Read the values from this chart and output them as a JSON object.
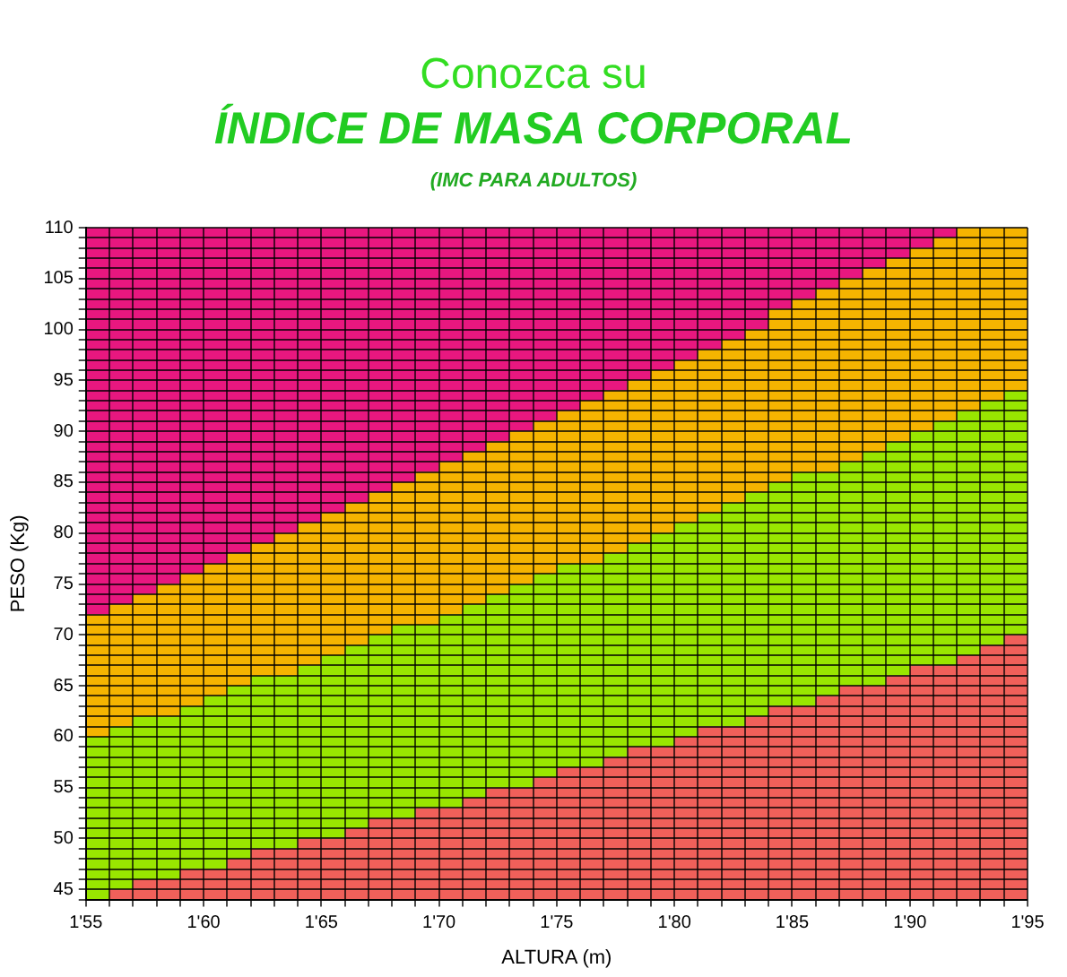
{
  "chart_data": {
    "type": "area",
    "title": "Conozca su",
    "subtitle": "ÍNDICE DE MASA CORPORAL",
    "annotations": [
      "(IMC PARA ADULTOS)"
    ],
    "xlabel": "ALTURA (m)",
    "ylabel": "PESO (Kg)",
    "categories": [
      "1'55",
      null,
      null,
      null,
      null,
      "1'60",
      null,
      null,
      null,
      null,
      "1'65",
      null,
      null,
      null,
      null,
      "1'70",
      null,
      null,
      null,
      null,
      "1'75",
      null,
      null,
      null,
      null,
      "1'80",
      null,
      null,
      null,
      null,
      "1'85",
      null,
      null,
      null,
      null,
      "1'90",
      null,
      null,
      null,
      null,
      "1'95"
    ],
    "series": [
      {
        "color": "#f0605a",
        "values": [
          44,
          45,
          46,
          46,
          47,
          47,
          48,
          49,
          49,
          50,
          50,
          51,
          52,
          52,
          53,
          53,
          54,
          55,
          55,
          56,
          57,
          57,
          58,
          59,
          59,
          60,
          61,
          61,
          62,
          63,
          63,
          64,
          65,
          65,
          66,
          67,
          67,
          68,
          69,
          70,
          70
        ]
      },
      {
        "color": "#99e600",
        "values": [
          60,
          61,
          62,
          62,
          63,
          64,
          65,
          66,
          66,
          67,
          68,
          69,
          70,
          71,
          71,
          72,
          73,
          74,
          75,
          76,
          77,
          77,
          78,
          79,
          80,
          81,
          82,
          83,
          84,
          85,
          86,
          86,
          87,
          88,
          89,
          90,
          91,
          92,
          93,
          94,
          95
        ]
      },
      {
        "color": "#f5b400",
        "values": [
          72,
          73,
          74,
          75,
          76,
          77,
          78,
          79,
          80,
          81,
          82,
          83,
          84,
          85,
          86,
          87,
          88,
          89,
          90,
          91,
          92,
          93,
          94,
          95,
          96,
          97,
          98,
          99,
          100,
          102,
          103,
          104,
          105,
          106,
          107,
          108,
          109,
          110,
          110,
          110,
          110
        ]
      },
      {
        "color": "#e8177f",
        "values": [
          110,
          110,
          110,
          110,
          110,
          110,
          110,
          110,
          110,
          110,
          110,
          110,
          110,
          110,
          110,
          110,
          110,
          110,
          110,
          110,
          110,
          110,
          110,
          110,
          110,
          110,
          110,
          110,
          110,
          110,
          110,
          110,
          110,
          110,
          110,
          110,
          110,
          110,
          110,
          110,
          110
        ]
      }
    ],
    "ylim": [
      44,
      110
    ],
    "yticks": [
      {
        "value": 44,
        "label": null
      },
      45,
      {
        "value": 46,
        "label": null
      },
      {
        "value": 47,
        "label": null
      },
      {
        "value": 48,
        "label": null
      },
      {
        "value": 49,
        "label": null
      },
      50,
      {
        "value": 51,
        "label": null
      },
      {
        "value": 52,
        "label": null
      },
      {
        "value": 53,
        "label": null
      },
      {
        "value": 54,
        "label": null
      },
      55,
      {
        "value": 56,
        "label": null
      },
      {
        "value": 57,
        "label": null
      },
      {
        "value": 58,
        "label": null
      },
      {
        "value": 59,
        "label": null
      },
      60,
      {
        "value": 61,
        "label": null
      },
      {
        "value": 62,
        "label": null
      },
      {
        "value": 63,
        "label": null
      },
      {
        "value": 64,
        "label": null
      },
      65,
      {
        "value": 66,
        "label": null
      },
      {
        "value": 67,
        "label": null
      },
      {
        "value": 68,
        "label": null
      },
      {
        "value": 69,
        "label": null
      },
      70,
      {
        "value": 71,
        "label": null
      },
      {
        "value": 72,
        "label": null
      },
      {
        "value": 73,
        "label": null
      },
      {
        "value": 74,
        "label": null
      },
      75,
      {
        "value": 76,
        "label": null
      },
      {
        "value": 77,
        "label": null
      },
      {
        "value": 78,
        "label": null
      },
      {
        "value": 79,
        "label": null
      },
      80,
      {
        "value": 81,
        "label": null
      },
      {
        "value": 82,
        "label": null
      },
      {
        "value": 83,
        "label": null
      },
      {
        "value": 84,
        "label": null
      },
      85,
      {
        "value": 86,
        "label": null
      },
      {
        "value": 87,
        "label": null
      },
      {
        "value": 88,
        "label": null
      },
      {
        "value": 89,
        "label": null
      },
      90,
      {
        "value": 91,
        "label": null
      },
      {
        "value": 92,
        "label": null
      },
      {
        "value": 93,
        "label": null
      },
      {
        "value": 94,
        "label": null
      },
      95,
      {
        "value": 96,
        "label": null
      },
      {
        "value": 97,
        "label": null
      },
      {
        "value": 98,
        "label": null
      },
      {
        "value": 99,
        "label": null
      },
      100,
      {
        "value": 101,
        "label": null
      },
      {
        "value": 102,
        "label": null
      },
      {
        "value": 103,
        "label": null
      },
      {
        "value": 104,
        "label": null
      },
      105,
      {
        "value": 106,
        "label": null
      },
      {
        "value": 107,
        "label": null
      },
      {
        "value": 108,
        "label": null
      },
      {
        "value": 109,
        "label": null
      },
      110
    ],
    "grid": true
  }
}
